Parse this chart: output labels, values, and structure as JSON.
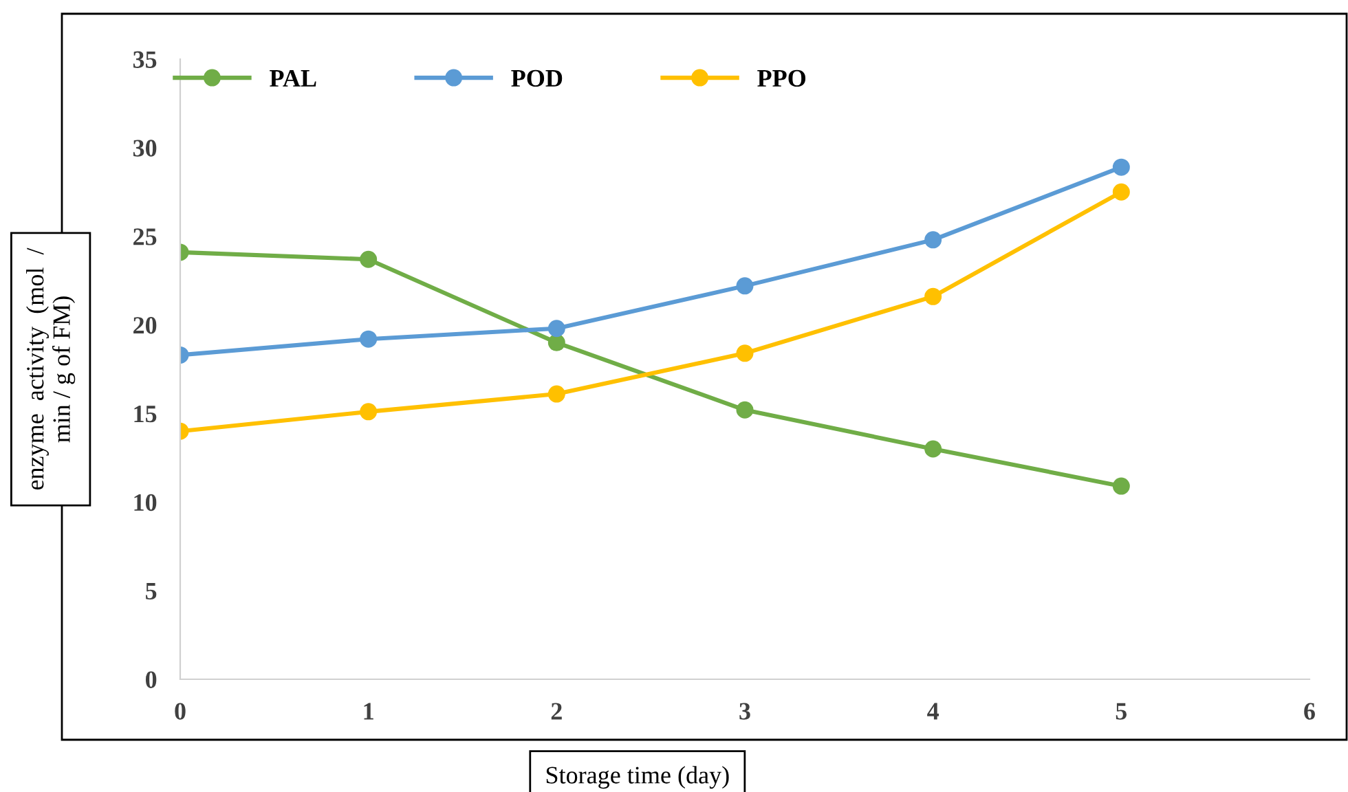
{
  "chart_data": {
    "type": "line",
    "xlabel": "Storage time (day)",
    "ylabel": "enzyme  activity  (mol  /\nmin / g of FM)",
    "x": [
      0,
      1,
      2,
      3,
      4,
      5
    ],
    "series": [
      {
        "name": "PAL",
        "color": "#70ad47",
        "values": [
          24.1,
          23.7,
          19.0,
          15.2,
          13.0,
          10.9
        ]
      },
      {
        "name": "POD",
        "color": "#5b9bd5",
        "values": [
          18.3,
          19.2,
          19.8,
          22.2,
          24.8,
          28.9
        ]
      },
      {
        "name": "PPO",
        "color": "#ffc000",
        "values": [
          14.0,
          15.1,
          16.1,
          18.4,
          21.6,
          27.5
        ]
      }
    ],
    "xlim": [
      0,
      6
    ],
    "xticks": [
      0,
      1,
      2,
      3,
      4,
      5,
      6
    ],
    "ylim": [
      0,
      35
    ],
    "yticks": [
      0,
      5,
      10,
      15,
      20,
      25,
      30,
      35
    ],
    "marker": "circle",
    "line_style": "solid",
    "legend": "top",
    "grid": false
  }
}
